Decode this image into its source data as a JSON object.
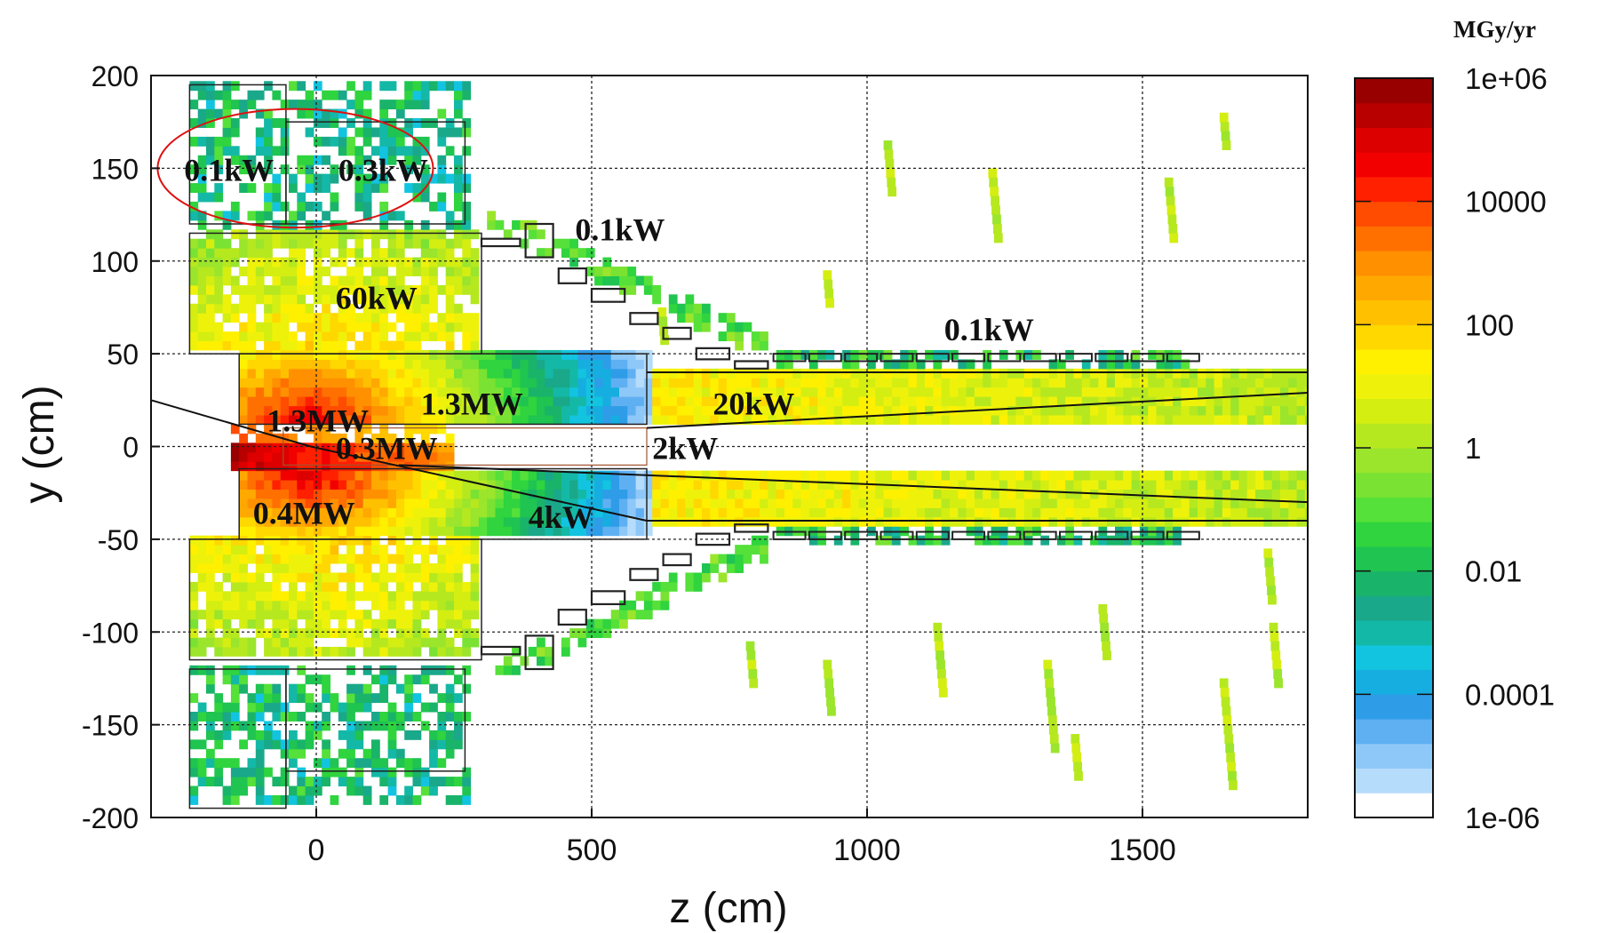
{
  "chart_data": {
    "type": "heatmap",
    "title": "",
    "xlabel": "z (cm)",
    "ylabel": "y (cm)",
    "xlim": [
      -300,
      1800
    ],
    "ylim": [
      -200,
      200
    ],
    "xticks": [
      0,
      500,
      1000,
      1500
    ],
    "yticks": [
      -200,
      -150,
      -100,
      -50,
      0,
      50,
      100,
      150,
      200
    ],
    "grid": true,
    "colorbar": {
      "unit": "MGy/yr",
      "scale": "log",
      "range": [
        1e-06,
        1000000.0
      ],
      "tick_labels": [
        "1e+06",
        "10000",
        "100",
        "1",
        "0.01",
        "0.0001",
        "1e-06"
      ],
      "colors": [
        "#ffffff",
        "#b6dcfb",
        "#8ec8f8",
        "#5fb0f2",
        "#2f9ce8",
        "#16aee0",
        "#12c4e0",
        "#14b8a6",
        "#1aa88a",
        "#19b469",
        "#1fc451",
        "#2fd43e",
        "#55e03a",
        "#7ae232",
        "#9be52c",
        "#b6e81f",
        "#d4ee12",
        "#eef20a",
        "#fff000",
        "#ffd800",
        "#ffc000",
        "#ffa800",
        "#ff9000",
        "#ff7000",
        "#ff4c00",
        "#ff2000",
        "#f20000",
        "#dc0000",
        "#b80000",
        "#980000"
      ]
    },
    "annotations": [
      {
        "text": "0.1kW",
        "z": -240,
        "y": 149
      },
      {
        "text": "0.3kW",
        "z": 40,
        "y": 149
      },
      {
        "text": "0.1kW",
        "z": 470,
        "y": 117
      },
      {
        "text": "60kW",
        "z": 35,
        "y": 80
      },
      {
        "text": "0.1kW",
        "z": 1140,
        "y": 63
      },
      {
        "text": "1.3MW",
        "z": 190,
        "y": 23
      },
      {
        "text": "20kW",
        "z": 720,
        "y": 23
      },
      {
        "text": "1.3MW",
        "z": -90,
        "y": 14
      },
      {
        "text": "0.3MW",
        "z": 35,
        "y": -1
      },
      {
        "text": "2kW",
        "z": 610,
        "y": -1
      },
      {
        "text": "0.4MW",
        "z": -115,
        "y": -36
      },
      {
        "text": "4kW",
        "z": 385,
        "y": -38
      }
    ],
    "highlight": {
      "shape": "ellipse",
      "color": "#d11",
      "center": [
        -38,
        150
      ],
      "radii": [
        250,
        32
      ]
    }
  }
}
